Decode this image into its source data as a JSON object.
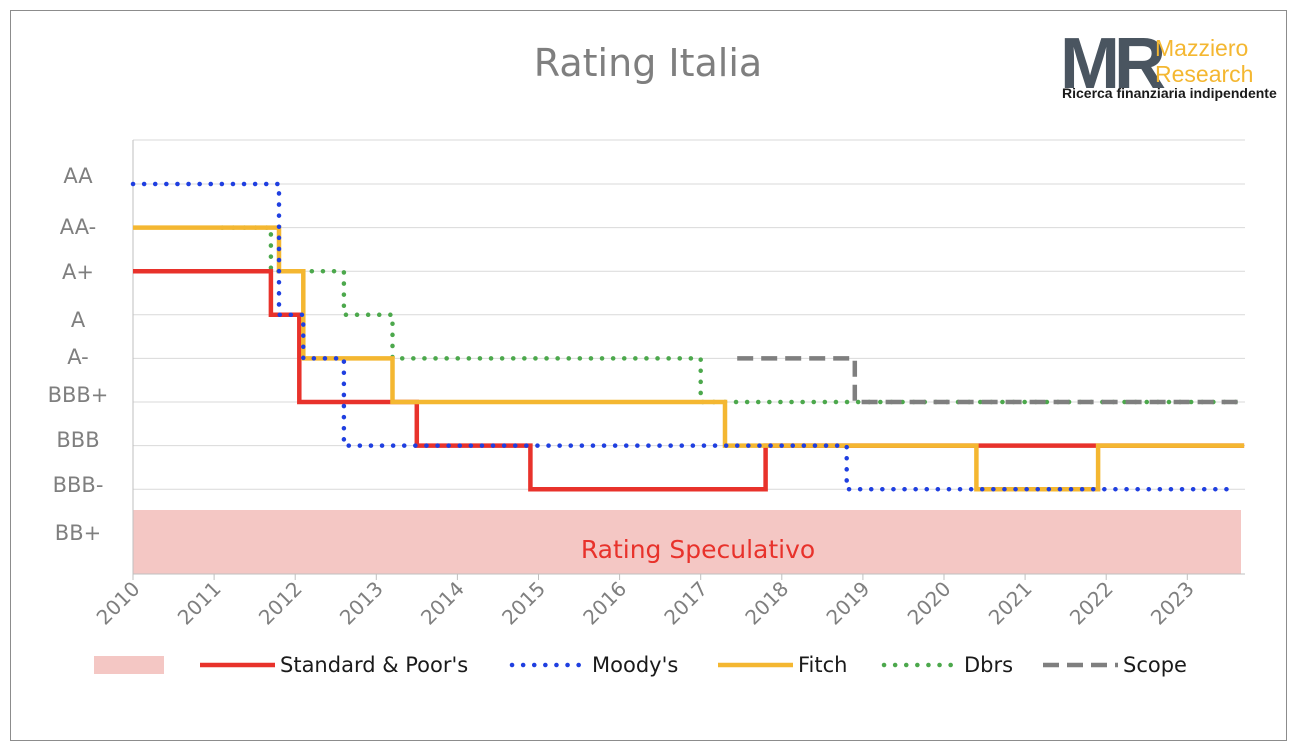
{
  "logo": {
    "mark": "MR",
    "name_line1": "Mazziero",
    "name_line2": "Research",
    "tagline": "Ricerca finanziaria indipendente",
    "mark_color": "#4a5560",
    "name_color": "#f4b731"
  },
  "chart_data": {
    "type": "line",
    "title": "Rating Italia",
    "xlabel": "",
    "ylabel": "",
    "x_ticks": [
      "2010",
      "2011",
      "2012",
      "2013",
      "2014",
      "2015",
      "2016",
      "2017",
      "2018",
      "2019",
      "2020",
      "2021",
      "2022",
      "2023"
    ],
    "xlim": [
      2010,
      2023.7
    ],
    "y_ticks": [
      "AA",
      "AA-",
      "A+",
      "A",
      "A-",
      "BBB+",
      "BBB",
      "BBB-",
      "BB+"
    ],
    "grid": true,
    "legend_position": "bottom",
    "speculative_band": {
      "label": "Rating Speculativo",
      "from": "BB+",
      "to": "below BB+",
      "fill": "#f4c7c4",
      "text_color": "#e8322b"
    },
    "series": [
      {
        "name": "Standard & Poor's",
        "color": "#e8322b",
        "style": "solid",
        "points": [
          [
            2010,
            "A+"
          ],
          [
            2011.7,
            "A+"
          ],
          [
            2011.7,
            "A"
          ],
          [
            2012.05,
            "A"
          ],
          [
            2012.05,
            "BBB+"
          ],
          [
            2013.5,
            "BBB+"
          ],
          [
            2013.5,
            "BBB"
          ],
          [
            2014.9,
            "BBB"
          ],
          [
            2014.9,
            "BBB-"
          ],
          [
            2017.8,
            "BBB-"
          ],
          [
            2017.8,
            "BBB"
          ],
          [
            2023.7,
            "BBB"
          ]
        ]
      },
      {
        "name": "Moody's",
        "color": "#1f3fe0",
        "style": "dotted",
        "points": [
          [
            2010,
            "AA"
          ],
          [
            2011.8,
            "AA"
          ],
          [
            2011.8,
            "A"
          ],
          [
            2012.1,
            "A"
          ],
          [
            2012.1,
            "A-"
          ],
          [
            2012.6,
            "A-"
          ],
          [
            2012.6,
            "BBB"
          ],
          [
            2018.8,
            "BBB"
          ],
          [
            2018.8,
            "BBB-"
          ],
          [
            2023.6,
            "BBB-"
          ]
        ]
      },
      {
        "name": "Fitch",
        "color": "#f4b731",
        "style": "solid",
        "points": [
          [
            2010,
            "AA-"
          ],
          [
            2011.8,
            "AA-"
          ],
          [
            2011.8,
            "A+"
          ],
          [
            2012.1,
            "A+"
          ],
          [
            2012.1,
            "A-"
          ],
          [
            2013.2,
            "A-"
          ],
          [
            2013.2,
            "BBB+"
          ],
          [
            2017.3,
            "BBB+"
          ],
          [
            2017.3,
            "BBB"
          ],
          [
            2020.4,
            "BBB"
          ],
          [
            2020.4,
            "BBB-"
          ],
          [
            2021.9,
            "BBB-"
          ],
          [
            2021.9,
            "BBB"
          ],
          [
            2023.7,
            "BBB"
          ]
        ]
      },
      {
        "name": "Dbrs",
        "color": "#4ca84c",
        "style": "dotted",
        "points": [
          [
            2011.1,
            "AA-"
          ],
          [
            2011.7,
            "AA-"
          ],
          [
            2011.7,
            "A+"
          ],
          [
            2012.6,
            "A+"
          ],
          [
            2012.6,
            "A"
          ],
          [
            2013.2,
            "A"
          ],
          [
            2013.2,
            "A-"
          ],
          [
            2017.0,
            "A-"
          ],
          [
            2017.0,
            "BBB+"
          ],
          [
            2023.6,
            "BBB+"
          ]
        ]
      },
      {
        "name": "Scope",
        "color": "#7f7f7f",
        "style": "dashed",
        "points": [
          [
            2017.45,
            "A-"
          ],
          [
            2018.9,
            "A-"
          ],
          [
            2018.9,
            "BBB+"
          ],
          [
            2023.7,
            "BBB+"
          ]
        ]
      }
    ]
  }
}
